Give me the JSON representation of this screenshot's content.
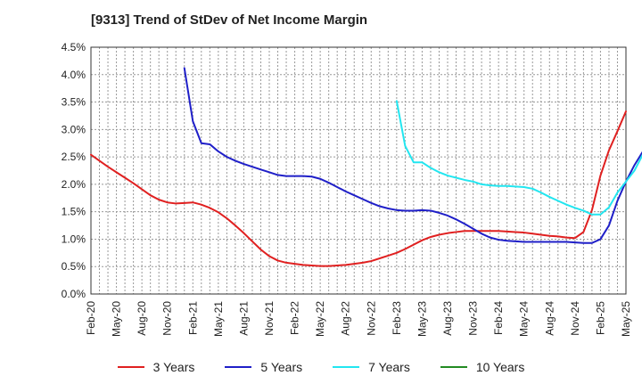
{
  "chart_data": {
    "type": "line",
    "title": "[9313]  Trend of StDev of Net Income Margin",
    "xlabel": "",
    "ylabel": "",
    "x_ticks": [
      "Feb-20",
      "May-20",
      "Aug-20",
      "Nov-20",
      "Feb-21",
      "May-21",
      "Aug-21",
      "Nov-21",
      "Feb-22",
      "May-22",
      "Aug-22",
      "Nov-22",
      "Feb-23",
      "May-23",
      "Aug-23",
      "Nov-23",
      "Feb-24",
      "May-24",
      "Aug-24",
      "Nov-24",
      "Feb-25",
      "May-25"
    ],
    "y_ticks": [
      "0.0%",
      "0.5%",
      "1.0%",
      "1.5%",
      "2.0%",
      "2.5%",
      "3.0%",
      "3.5%",
      "4.0%",
      "4.5%"
    ],
    "ylim": [
      0,
      4.5
    ],
    "grid": true,
    "legend_position": "bottom",
    "series": [
      {
        "name": "3 Years",
        "color": "#e02020",
        "points": [
          [
            "Feb-20",
            2.54
          ],
          [
            "Mar-20",
            2.43
          ],
          [
            "Apr-20",
            2.32
          ],
          [
            "May-20",
            2.22
          ],
          [
            "Jun-20",
            2.12
          ],
          [
            "Jul-20",
            2.02
          ],
          [
            "Aug-20",
            1.91
          ],
          [
            "Sep-20",
            1.8
          ],
          [
            "Oct-20",
            1.72
          ],
          [
            "Nov-20",
            1.67
          ],
          [
            "Dec-20",
            1.65
          ],
          [
            "Jan-21",
            1.66
          ],
          [
            "Feb-21",
            1.67
          ],
          [
            "Mar-21",
            1.63
          ],
          [
            "Apr-21",
            1.57
          ],
          [
            "May-21",
            1.49
          ],
          [
            "Jun-21",
            1.38
          ],
          [
            "Jul-21",
            1.25
          ],
          [
            "Aug-21",
            1.11
          ],
          [
            "Sep-21",
            0.96
          ],
          [
            "Oct-21",
            0.81
          ],
          [
            "Nov-21",
            0.69
          ],
          [
            "Dec-21",
            0.61
          ],
          [
            "Jan-22",
            0.57
          ],
          [
            "Feb-22",
            0.55
          ],
          [
            "Mar-22",
            0.53
          ],
          [
            "Apr-22",
            0.52
          ],
          [
            "May-22",
            0.51
          ],
          [
            "Jun-22",
            0.51
          ],
          [
            "Jul-22",
            0.52
          ],
          [
            "Aug-22",
            0.53
          ],
          [
            "Sep-22",
            0.55
          ],
          [
            "Oct-22",
            0.57
          ],
          [
            "Nov-22",
            0.6
          ],
          [
            "Dec-22",
            0.65
          ],
          [
            "Jan-23",
            0.7
          ],
          [
            "Feb-23",
            0.75
          ],
          [
            "Mar-23",
            0.82
          ],
          [
            "Apr-23",
            0.9
          ],
          [
            "May-23",
            0.98
          ],
          [
            "Jun-23",
            1.04
          ],
          [
            "Jul-23",
            1.08
          ],
          [
            "Aug-23",
            1.11
          ],
          [
            "Sep-23",
            1.13
          ],
          [
            "Oct-23",
            1.15
          ],
          [
            "Nov-23",
            1.15
          ],
          [
            "Dec-23",
            1.15
          ],
          [
            "Jan-24",
            1.15
          ],
          [
            "Feb-24",
            1.15
          ],
          [
            "Mar-24",
            1.14
          ],
          [
            "Apr-24",
            1.13
          ],
          [
            "May-24",
            1.12
          ],
          [
            "Jun-24",
            1.1
          ],
          [
            "Jul-24",
            1.08
          ],
          [
            "Aug-24",
            1.06
          ],
          [
            "Sep-24",
            1.05
          ],
          [
            "Oct-24",
            1.03
          ],
          [
            "Nov-24",
            1.02
          ],
          [
            "Dec-24",
            1.13
          ],
          [
            "Jan-25",
            1.53
          ],
          [
            "Feb-25",
            2.16
          ],
          [
            "Mar-25",
            2.62
          ],
          [
            "Apr-25",
            2.97
          ],
          [
            "May-25",
            3.33
          ]
        ]
      },
      {
        "name": "5 Years",
        "color": "#1f1fc8",
        "points": [
          [
            "Jan-21",
            4.12
          ],
          [
            "Feb-21",
            3.15
          ],
          [
            "Mar-21",
            2.75
          ],
          [
            "Apr-21",
            2.73
          ],
          [
            "May-21",
            2.6
          ],
          [
            "Jun-21",
            2.5
          ],
          [
            "Jul-21",
            2.43
          ],
          [
            "Aug-21",
            2.37
          ],
          [
            "Sep-21",
            2.32
          ],
          [
            "Oct-21",
            2.27
          ],
          [
            "Nov-21",
            2.22
          ],
          [
            "Dec-21",
            2.17
          ],
          [
            "Jan-22",
            2.15
          ],
          [
            "Feb-22",
            2.15
          ],
          [
            "Mar-22",
            2.15
          ],
          [
            "Apr-22",
            2.14
          ],
          [
            "May-22",
            2.1
          ],
          [
            "Jun-22",
            2.03
          ],
          [
            "Jul-22",
            1.95
          ],
          [
            "Aug-22",
            1.87
          ],
          [
            "Sep-22",
            1.8
          ],
          [
            "Oct-22",
            1.73
          ],
          [
            "Nov-22",
            1.66
          ],
          [
            "Dec-22",
            1.6
          ],
          [
            "Jan-23",
            1.56
          ],
          [
            "Feb-23",
            1.53
          ],
          [
            "Mar-23",
            1.52
          ],
          [
            "Apr-23",
            1.52
          ],
          [
            "May-23",
            1.53
          ],
          [
            "Jun-23",
            1.52
          ],
          [
            "Jul-23",
            1.48
          ],
          [
            "Aug-23",
            1.43
          ],
          [
            "Sep-23",
            1.36
          ],
          [
            "Oct-23",
            1.28
          ],
          [
            "Nov-23",
            1.19
          ],
          [
            "Dec-23",
            1.1
          ],
          [
            "Jan-24",
            1.03
          ],
          [
            "Feb-24",
            0.99
          ],
          [
            "Mar-24",
            0.97
          ],
          [
            "Apr-24",
            0.96
          ],
          [
            "May-24",
            0.95
          ],
          [
            "Jun-24",
            0.95
          ],
          [
            "Jul-24",
            0.95
          ],
          [
            "Aug-24",
            0.95
          ],
          [
            "Sep-24",
            0.95
          ],
          [
            "Oct-24",
            0.95
          ],
          [
            "Nov-24",
            0.94
          ],
          [
            "Dec-24",
            0.93
          ],
          [
            "Jan-25",
            0.93
          ],
          [
            "Feb-25",
            1.0
          ],
          [
            "Mar-25",
            1.25
          ],
          [
            "Apr-25",
            1.7
          ],
          [
            "May-25",
            2.05
          ],
          [
            "Jun-25",
            2.35
          ],
          [
            "Jul-25",
            2.6
          ]
        ]
      },
      {
        "name": "7 Years",
        "color": "#22e6f0",
        "points": [
          [
            "Feb-23",
            3.52
          ],
          [
            "Mar-23",
            2.7
          ],
          [
            "Apr-23",
            2.4
          ],
          [
            "May-23",
            2.4
          ],
          [
            "Jun-23",
            2.3
          ],
          [
            "Jul-23",
            2.22
          ],
          [
            "Aug-23",
            2.16
          ],
          [
            "Sep-23",
            2.12
          ],
          [
            "Oct-23",
            2.08
          ],
          [
            "Nov-23",
            2.05
          ],
          [
            "Dec-23",
            2.0
          ],
          [
            "Jan-24",
            1.98
          ],
          [
            "Feb-24",
            1.97
          ],
          [
            "Mar-24",
            1.97
          ],
          [
            "Apr-24",
            1.96
          ],
          [
            "May-24",
            1.95
          ],
          [
            "Jun-24",
            1.92
          ],
          [
            "Jul-24",
            1.85
          ],
          [
            "Aug-24",
            1.77
          ],
          [
            "Sep-24",
            1.7
          ],
          [
            "Oct-24",
            1.63
          ],
          [
            "Nov-24",
            1.57
          ],
          [
            "Dec-24",
            1.52
          ],
          [
            "Jan-25",
            1.45
          ],
          [
            "Feb-25",
            1.45
          ],
          [
            "Mar-25",
            1.58
          ],
          [
            "Apr-25",
            1.85
          ],
          [
            "May-25",
            2.05
          ],
          [
            "Jun-25",
            2.25
          ],
          [
            "Jul-25",
            2.55
          ]
        ]
      },
      {
        "name": "10 Years",
        "color": "#228b22",
        "points": []
      }
    ]
  }
}
